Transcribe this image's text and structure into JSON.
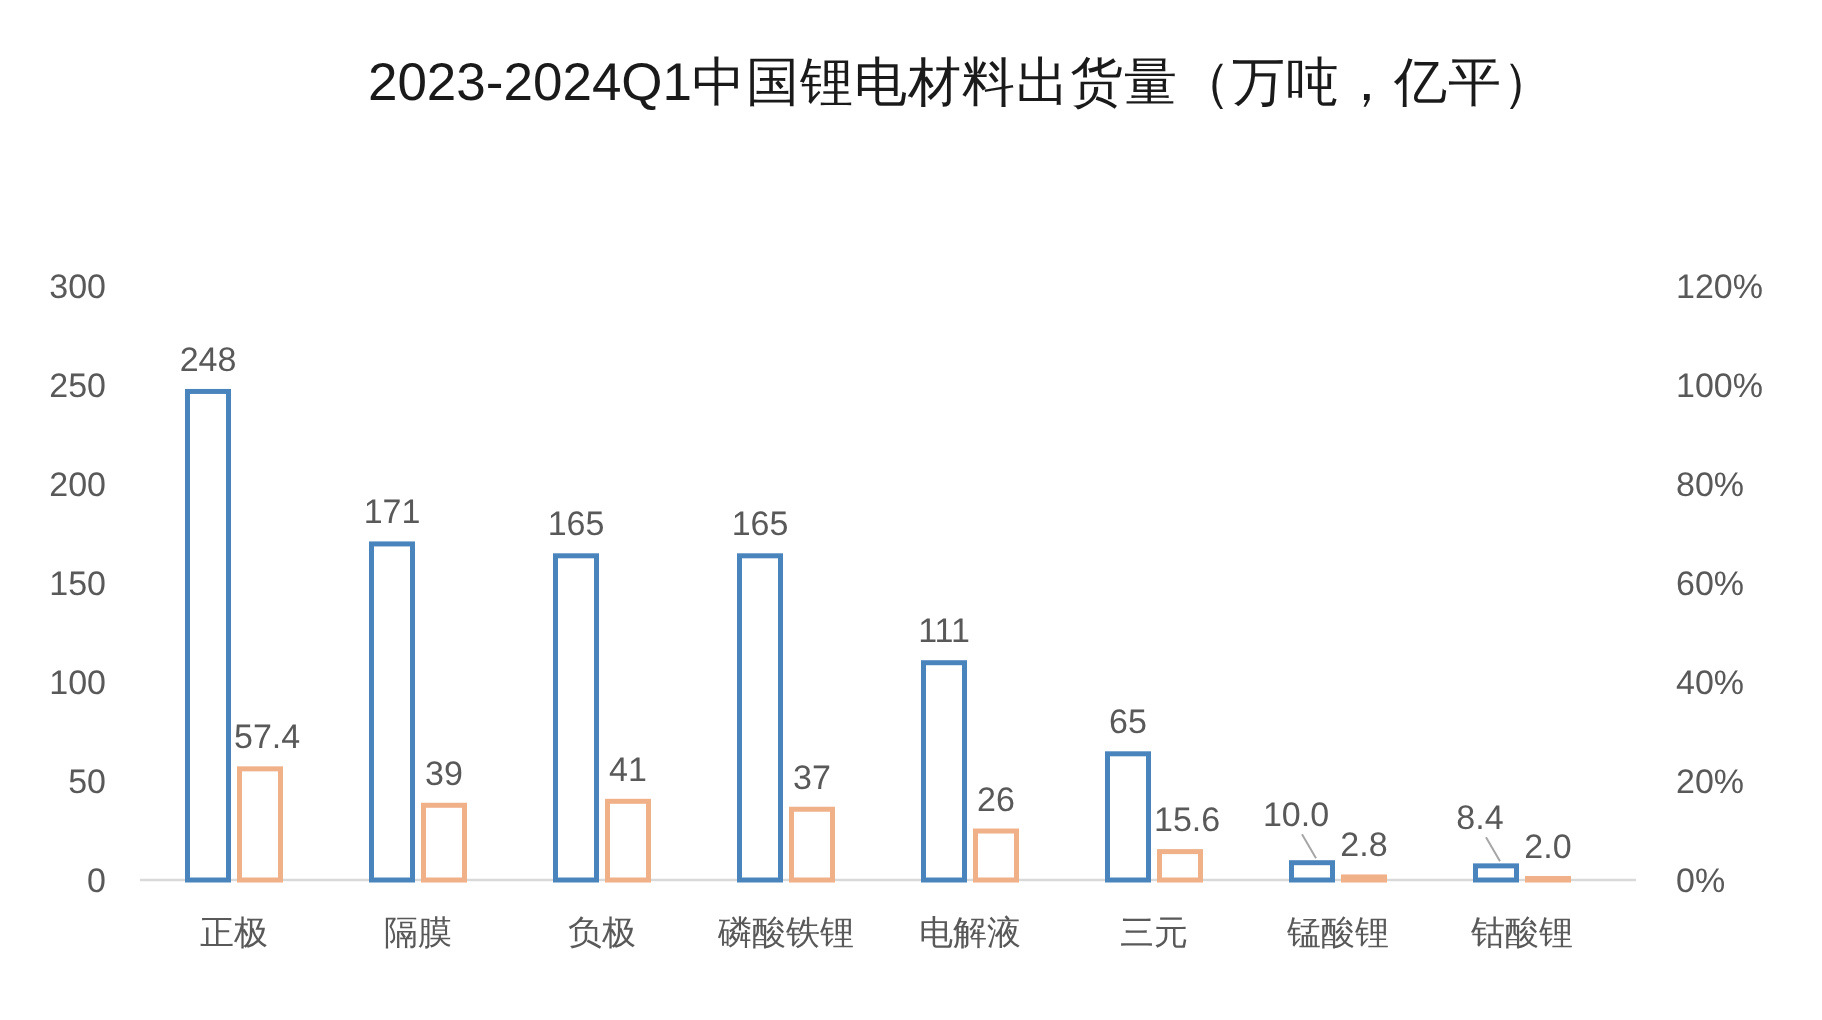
{
  "chart_data": {
    "type": "bar",
    "title": "2023-2024Q1中国锂电材料出货量（万吨，亿平）",
    "categories": [
      "正极",
      "隔膜",
      "负极",
      "磷酸铁锂",
      "电解液",
      "三元",
      "锰酸锂",
      "钴酸锂"
    ],
    "series": [
      {
        "color": "#4a84bd",
        "values": [
          248,
          171,
          165,
          165,
          111,
          65,
          10.0,
          8.4
        ],
        "value_labels": [
          "248",
          "171",
          "165",
          "165",
          "111",
          "65",
          "10.0",
          "8.4"
        ]
      },
      {
        "color": "#f0b088",
        "values": [
          57.4,
          39,
          41,
          37,
          26,
          15.6,
          2.8,
          2.0
        ],
        "value_labels": [
          "57.4",
          "39",
          "41",
          "37",
          "26",
          "15.6",
          "2.8",
          "2.0"
        ]
      }
    ],
    "ylim": [
      0,
      300
    ],
    "yticks": [
      0,
      50,
      100,
      150,
      200,
      250,
      300
    ],
    "y2lim": [
      0,
      120
    ],
    "y2ticks": [
      {
        "value": 0,
        "label": "0%"
      },
      {
        "value": 20,
        "label": "20%"
      },
      {
        "value": 40,
        "label": "40%"
      },
      {
        "value": 60,
        "label": "60%"
      },
      {
        "value": 80,
        "label": "80%"
      },
      {
        "value": 100,
        "label": "100%"
      },
      {
        "value": 120,
        "label": "120%"
      }
    ]
  }
}
